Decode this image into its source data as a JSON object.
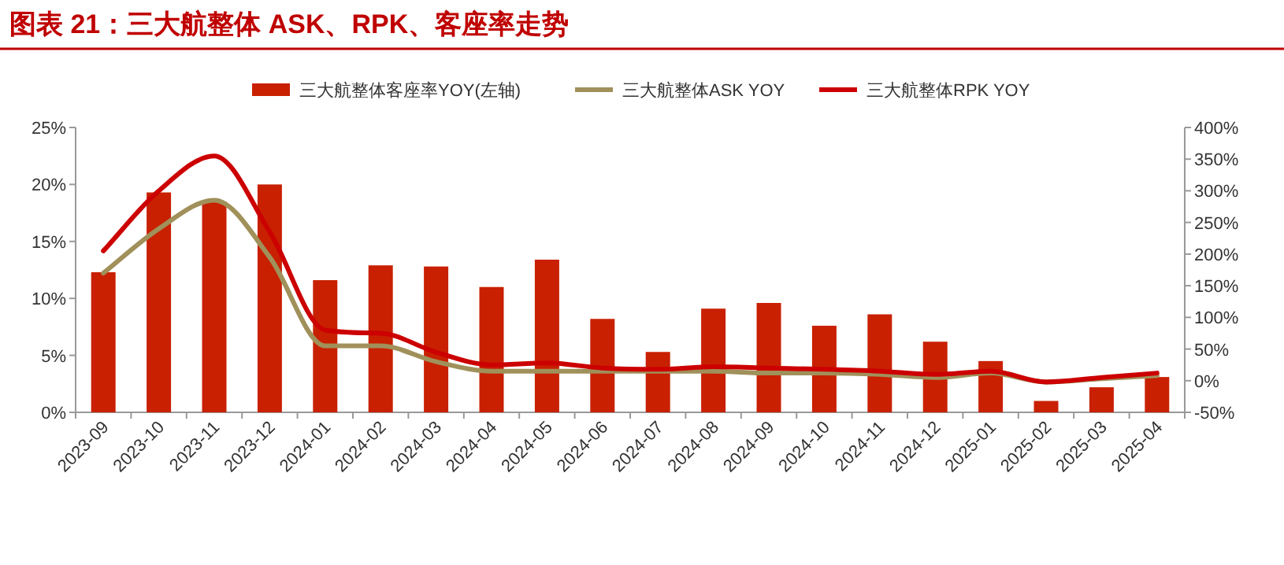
{
  "chart_data": {
    "type": "bar",
    "title": "图表 21：三大航整体 ASK、RPK、客座率走势",
    "categories": [
      "2023-09",
      "2023-10",
      "2023-11",
      "2023-12",
      "2024-01",
      "2024-02",
      "2024-03",
      "2024-04",
      "2024-05",
      "2024-06",
      "2024-07",
      "2024-08",
      "2024-09",
      "2024-10",
      "2024-11",
      "2024-12",
      "2025-01",
      "2025-02",
      "2025-03",
      "2025-04"
    ],
    "series": [
      {
        "name": "三大航整体客座率YOY(左轴)",
        "color": "#c82000",
        "values": [
          12.3,
          19.3,
          18.5,
          20.0,
          11.6,
          12.9,
          12.8,
          11.0,
          13.4,
          8.2,
          5.3,
          9.1,
          9.6,
          7.6,
          8.6,
          6.2,
          4.5,
          1.0,
          2.2,
          3.1
        ]
      },
      {
        "name": "三大航整体ASK YOY",
        "type": "line",
        "axis": "y2",
        "color": "#a0905a",
        "values": [
          170,
          240,
          285,
          195,
          55,
          55,
          30,
          15,
          15,
          15,
          15,
          15,
          12,
          12,
          10,
          5,
          12,
          -2,
          3,
          8
        ]
      },
      {
        "name": "三大航整体RPK YOY",
        "type": "line",
        "axis": "y2",
        "color": "#cc0000",
        "values": [
          205,
          300,
          355,
          235,
          80,
          75,
          45,
          25,
          28,
          20,
          18,
          22,
          20,
          18,
          15,
          10,
          15,
          -2,
          5,
          12
        ]
      }
    ],
    "ylim": [
      0,
      25
    ],
    "yticks": [
      {
        "value": 0,
        "label": "0%"
      },
      {
        "value": 5,
        "label": "5%"
      },
      {
        "value": 10,
        "label": "10%"
      },
      {
        "value": 15,
        "label": "15%"
      },
      {
        "value": 20,
        "label": "20%"
      },
      {
        "value": 25,
        "label": "25%"
      }
    ],
    "y2lim": [
      -50,
      400
    ],
    "y2ticks": [
      {
        "value": -50,
        "label": "-50%"
      },
      {
        "value": 0,
        "label": "0%"
      },
      {
        "value": 50,
        "label": "50%"
      },
      {
        "value": 100,
        "label": "100%"
      },
      {
        "value": 150,
        "label": "150%"
      },
      {
        "value": 200,
        "label": "200%"
      },
      {
        "value": 250,
        "label": "250%"
      },
      {
        "value": 300,
        "label": "300%"
      },
      {
        "value": 350,
        "label": "350%"
      },
      {
        "value": 400,
        "label": "400%"
      }
    ],
    "legend": "top"
  }
}
